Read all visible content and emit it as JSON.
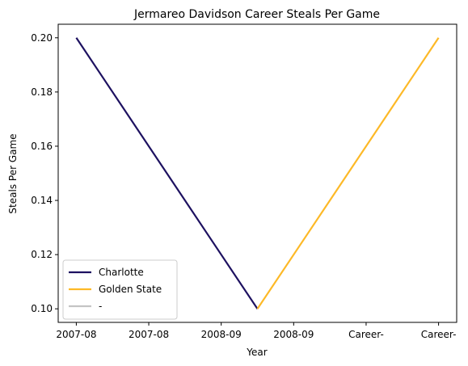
{
  "chart_data": {
    "type": "line",
    "title": "Jermareo Davidson Career Steals Per Game",
    "xlabel": "Year",
    "ylabel": "Steals Per Game",
    "x_ticks": [
      "2007-08",
      "2007-08",
      "2008-09",
      "2008-09",
      "Career-",
      "Career-"
    ],
    "ylim": [
      0.095,
      0.205
    ],
    "y_ticks": [
      0.1,
      0.12,
      0.14,
      0.16,
      0.18,
      0.2
    ],
    "grid": false,
    "legend_position": "lower-left",
    "series": [
      {
        "name": "Charlotte",
        "color": "#1d1160",
        "points": [
          [
            0,
            0.2
          ],
          [
            2.5,
            0.1
          ]
        ]
      },
      {
        "name": "Golden State",
        "color": "#fdb927",
        "points": [
          [
            2.5,
            0.1
          ],
          [
            5,
            0.2
          ]
        ]
      },
      {
        "name": "-",
        "color": "#c4c4c4",
        "points": []
      }
    ]
  }
}
